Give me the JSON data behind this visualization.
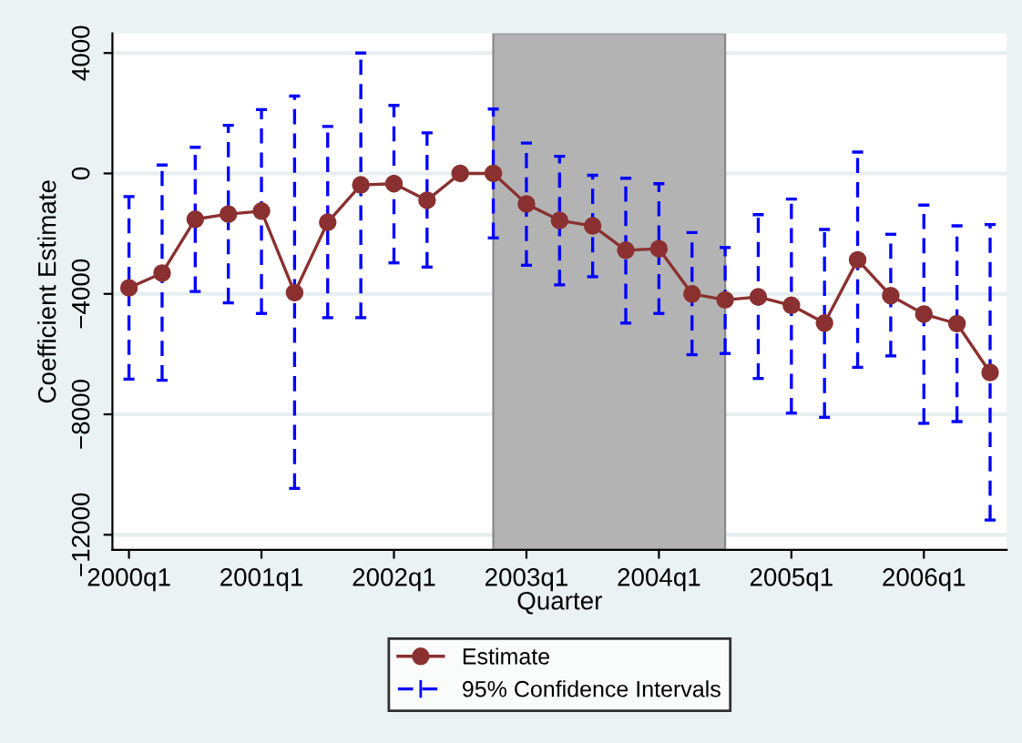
{
  "chart_data": {
    "type": "line",
    "xlabel": "Quarter",
    "ylabel": "Coefficient Estimate",
    "categories": [
      "2000q1",
      null,
      null,
      null,
      "2001q1",
      null,
      null,
      null,
      "2002q1",
      null,
      null,
      null,
      "2003q1",
      null,
      null,
      null,
      "2004q1",
      null,
      null,
      null,
      "2005q1",
      null,
      null,
      null,
      "2006q1",
      null,
      null
    ],
    "series": [
      {
        "name": "Estimate",
        "color": "#8b3030",
        "marker": "circle",
        "line_style": "solid",
        "values": [
          -3800,
          -3310,
          -1520,
          -1350,
          -1250,
          -3960,
          -1620,
          -380,
          -340,
          -890,
          0,
          0,
          -1010,
          -1560,
          -1740,
          -2550,
          -2500,
          -4000,
          -4200,
          -4100,
          -4380,
          -4970,
          -2870,
          -4060,
          -4670,
          -4990,
          -6610
        ],
        "errors": [
          [
            -6830,
            -770
          ],
          [
            -6870,
            280
          ],
          [
            -3920,
            870
          ],
          [
            -4300,
            1600
          ],
          [
            -4650,
            2120
          ],
          [
            -10460,
            2570
          ],
          [
            -4790,
            1560
          ],
          [
            -4790,
            4000
          ],
          [
            -2970,
            2260
          ],
          [
            -3110,
            1350
          ],
          null,
          [
            -2140,
            2140
          ],
          [
            -3050,
            1010
          ],
          [
            -3700,
            570
          ],
          [
            -3430,
            -60
          ],
          [
            -4970,
            -160
          ],
          [
            -4650,
            -340
          ],
          [
            -6020,
            -1960
          ],
          [
            -5980,
            -2460
          ],
          [
            -6810,
            -1370
          ],
          [
            -7960,
            -850
          ],
          [
            -8100,
            -1860
          ],
          [
            -6440,
            710
          ],
          [
            -6060,
            -2020
          ],
          [
            -8300,
            -1050
          ],
          [
            -8240,
            -1740
          ],
          [
            -11510,
            -1700
          ]
        ]
      }
    ],
    "annotations": [
      "95% Confidence Intervals"
    ],
    "ylim": [
      -12500,
      4650
    ],
    "yticks": [
      4000,
      0,
      {
        "value": -4000,
        "label": "−4000"
      },
      {
        "value": -8000,
        "label": "−8000"
      },
      {
        "value": -12000,
        "label": "−12000"
      }
    ],
    "grid": "y",
    "legend": "bottom"
  }
}
